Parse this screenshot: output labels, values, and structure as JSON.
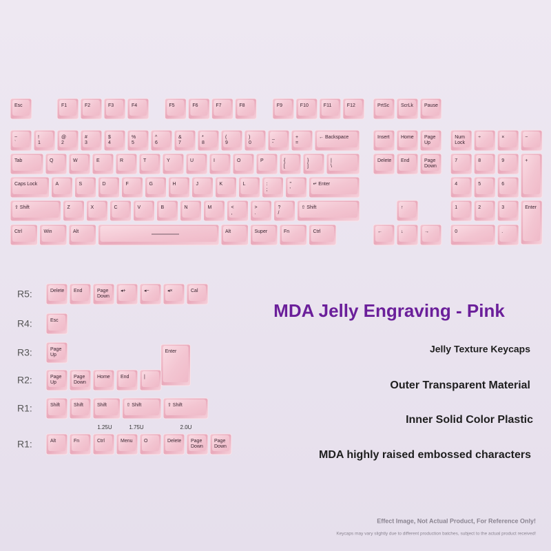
{
  "keyboard": {
    "rows": [
      [
        [
          "Esc"
        ],
        [
          "F1"
        ],
        [
          "F2"
        ],
        [
          "F3"
        ],
        [
          "F4"
        ],
        [
          "F5"
        ],
        [
          "F6"
        ],
        [
          "F7"
        ],
        [
          "F8"
        ],
        [
          "F9"
        ],
        [
          "F10"
        ],
        [
          "F11"
        ],
        [
          "F12"
        ],
        [
          "PrtSc"
        ],
        [
          "ScrLk"
        ],
        [
          "Pause"
        ]
      ],
      [
        [
          "~",
          "`"
        ],
        [
          "!",
          "1"
        ],
        [
          "@",
          "2"
        ],
        [
          "#",
          "3"
        ],
        [
          "$",
          "4"
        ],
        [
          "%",
          "5"
        ],
        [
          "^",
          "6"
        ],
        [
          "&",
          "7"
        ],
        [
          "*",
          "8"
        ],
        [
          "(",
          "9"
        ],
        [
          ")",
          "0"
        ],
        [
          "_",
          "-"
        ],
        [
          "+",
          "="
        ],
        [
          "← Backspace"
        ],
        [
          "Insert"
        ],
        [
          "Home"
        ],
        [
          "Page",
          "Up"
        ],
        [
          "Num",
          "Lock"
        ],
        [
          "÷"
        ],
        [
          "×"
        ],
        [
          "−"
        ]
      ],
      [
        [
          "Tab"
        ],
        [
          "Q"
        ],
        [
          "W"
        ],
        [
          "E"
        ],
        [
          "R"
        ],
        [
          "T"
        ],
        [
          "Y"
        ],
        [
          "U"
        ],
        [
          "I"
        ],
        [
          "O"
        ],
        [
          "P"
        ],
        [
          "{",
          "["
        ],
        [
          "}",
          "]"
        ],
        [
          "|",
          "\\"
        ],
        [
          "Delete"
        ],
        [
          "End"
        ],
        [
          "Page",
          "Down"
        ],
        [
          "7"
        ],
        [
          "8"
        ],
        [
          "9"
        ],
        [
          "+"
        ]
      ],
      [
        [
          "Caps Lock"
        ],
        [
          "A"
        ],
        [
          "S"
        ],
        [
          "D"
        ],
        [
          "F"
        ],
        [
          "G"
        ],
        [
          "H"
        ],
        [
          "J"
        ],
        [
          "K"
        ],
        [
          "L"
        ],
        [
          ":",
          ";"
        ],
        [
          "\"",
          "'"
        ],
        [
          "↵ Enter"
        ],
        [
          "4"
        ],
        [
          "5"
        ],
        [
          "6"
        ]
      ],
      [
        [
          "⇧ Shift"
        ],
        [
          "Z"
        ],
        [
          "X"
        ],
        [
          "C"
        ],
        [
          "V"
        ],
        [
          "B"
        ],
        [
          "N"
        ],
        [
          "M"
        ],
        [
          "<",
          ","
        ],
        [
          ">",
          "."
        ],
        [
          "?",
          "/"
        ],
        [
          "⇧ Shift"
        ],
        [
          "↑"
        ],
        [
          "1"
        ],
        [
          "2"
        ],
        [
          "3"
        ],
        [
          "Enter"
        ]
      ],
      [
        [
          "Ctrl"
        ],
        [
          "Win"
        ],
        [
          "Alt"
        ],
        [
          "Alt"
        ],
        [
          "Super"
        ],
        [
          "Fn"
        ],
        [
          "Ctrl"
        ],
        [
          "←"
        ],
        [
          "↓"
        ],
        [
          "→"
        ],
        [
          "0"
        ],
        [
          "."
        ]
      ]
    ]
  },
  "extras": {
    "rows": [
      {
        "label": "R5:",
        "keys": [
          [
            "Delete"
          ],
          [
            "End"
          ],
          [
            "Page",
            "Down"
          ],
          [
            "◂+"
          ],
          [
            "◂−"
          ],
          [
            "◂×"
          ],
          [
            "Cal"
          ]
        ]
      },
      {
        "label": "R4:",
        "keys": [
          [
            "Esc"
          ]
        ]
      },
      {
        "label": "R3:",
        "keys": [
          [
            "Page",
            "Up"
          ],
          [
            "Enter"
          ]
        ]
      },
      {
        "label": "R2:",
        "keys": [
          [
            "Page",
            "Up"
          ],
          [
            "Page",
            "Down"
          ],
          [
            "Home"
          ],
          [
            "End"
          ],
          [
            "|"
          ]
        ]
      },
      {
        "label": "R1:",
        "keys": [
          [
            "Shift"
          ],
          [
            "Shift"
          ],
          [
            "Shift"
          ],
          [
            "⇧ Shift"
          ],
          [
            "⇧ Shift"
          ]
        ]
      },
      {
        "label": "R1:",
        "keys": [
          [
            "Alt"
          ],
          [
            "Fn"
          ],
          [
            "Ctrl"
          ],
          [
            "Menu"
          ],
          [
            "O"
          ],
          [
            "Delete"
          ],
          [
            "Page",
            "Down"
          ],
          [
            "Page",
            "Down"
          ]
        ]
      }
    ],
    "size_labels": [
      "1.25U",
      "1.75U",
      "2.0U"
    ]
  },
  "title": "MDA Jelly Engraving - Pink",
  "features": [
    "Jelly Texture Keycaps",
    "Outer Transparent Material",
    "Inner Solid Color Plastic",
    "MDA highly raised embossed characters"
  ],
  "notes": [
    "Effect Image, Not Actual Product, For Reference Only!",
    "Keycaps may vary slightly due to different production batches, subject to the actual product received!"
  ]
}
